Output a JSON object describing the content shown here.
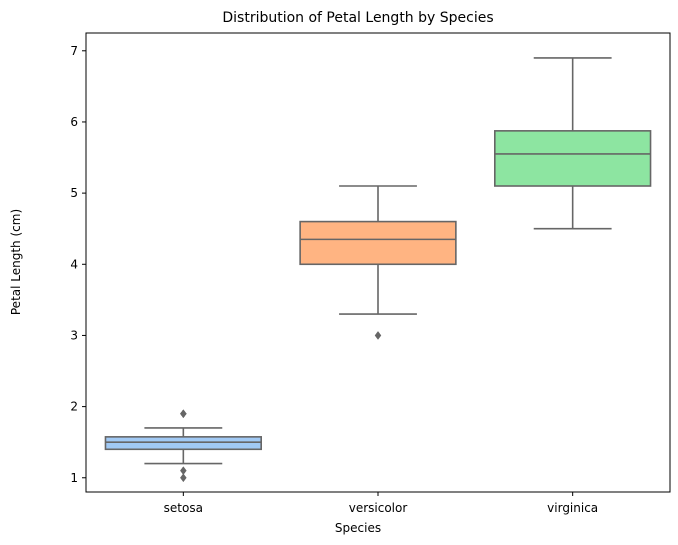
{
  "chart_data": {
    "type": "box",
    "title": "Distribution of Petal Length by Species",
    "xlabel": "Species",
    "ylabel": "Petal Length (cm)",
    "ylim": [
      0.8,
      7.25
    ],
    "yticks": [
      1,
      2,
      3,
      4,
      5,
      6,
      7
    ],
    "grid": false,
    "categories": [
      "setosa",
      "versicolor",
      "virginica"
    ],
    "boxes": [
      {
        "category": "setosa",
        "color": "#a1c9f4",
        "whisker_low": 1.2,
        "q1": 1.4,
        "median": 1.5,
        "q3": 1.575,
        "whisker_high": 1.7,
        "outliers": [
          1.0,
          1.1,
          1.9,
          1.9
        ]
      },
      {
        "category": "versicolor",
        "color": "#ffb482",
        "whisker_low": 3.3,
        "q1": 4.0,
        "median": 4.35,
        "q3": 4.6,
        "whisker_high": 5.1,
        "outliers": [
          3.0
        ]
      },
      {
        "category": "virginica",
        "color": "#8de5a1",
        "whisker_low": 4.5,
        "q1": 5.1,
        "median": 5.55,
        "q3": 5.875,
        "whisker_high": 6.9,
        "outliers": []
      }
    ],
    "line_color": "#666666"
  }
}
